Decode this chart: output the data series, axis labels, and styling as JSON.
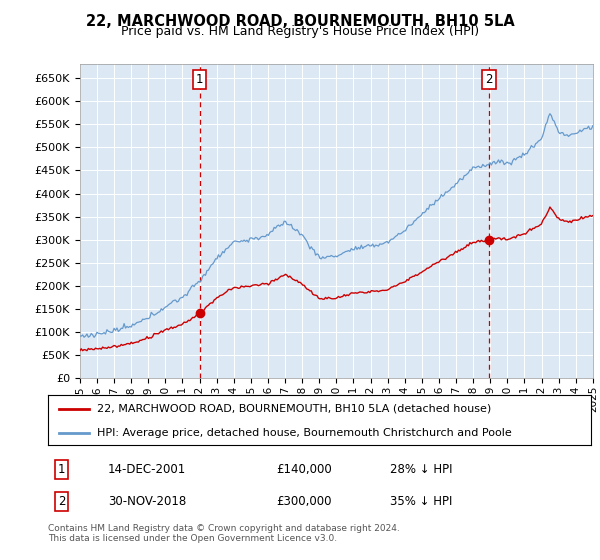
{
  "title": "22, MARCHWOOD ROAD, BOURNEMOUTH, BH10 5LA",
  "subtitle": "Price paid vs. HM Land Registry's House Price Index (HPI)",
  "plot_bg_color": "#dce9f5",
  "ylim": [
    0,
    680000
  ],
  "yticks": [
    0,
    50000,
    100000,
    150000,
    200000,
    250000,
    300000,
    350000,
    400000,
    450000,
    500000,
    550000,
    600000,
    650000
  ],
  "hpi_color": "#6699cc",
  "price_color": "#cc0000",
  "legend_items": [
    "22, MARCHWOOD ROAD, BOURNEMOUTH, BH10 5LA (detached house)",
    "HPI: Average price, detached house, Bournemouth Christchurch and Poole"
  ],
  "sale1_label": "1",
  "sale1_date": "14-DEC-2001",
  "sale1_price": 140000,
  "sale1_text": "28% ↓ HPI",
  "sale2_label": "2",
  "sale2_date": "30-NOV-2018",
  "sale2_price": 300000,
  "sale2_text": "35% ↓ HPI",
  "footer": "Contains HM Land Registry data © Crown copyright and database right 2024.\nThis data is licensed under the Open Government Licence v3.0.",
  "x_start_year": 1995,
  "x_end_year": 2025,
  "sale1_year": 2002.0,
  "sale2_year": 2018.92
}
